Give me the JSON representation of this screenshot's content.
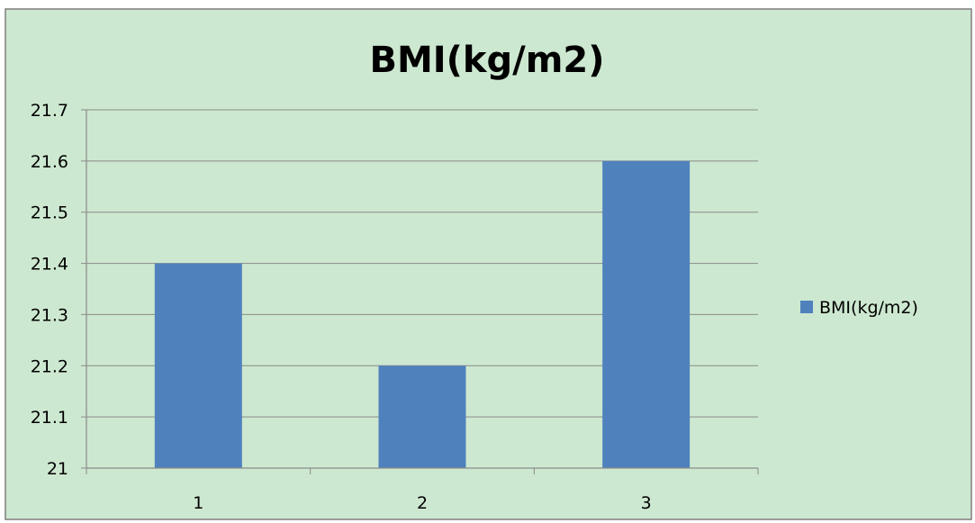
{
  "chart_data": {
    "type": "bar",
    "title": "BMI(kg/m2)",
    "xlabel": "",
    "ylabel": "",
    "categories": [
      "1",
      "2",
      "3"
    ],
    "series": [
      {
        "name": "BMI(kg/m2)",
        "values": [
          21.4,
          21.2,
          21.6
        ]
      }
    ],
    "ylim": [
      21,
      21.7
    ],
    "yticks": [
      "21",
      "21.1",
      "21.2",
      "21.3",
      "21.4",
      "21.5",
      "21.6",
      "21.7"
    ],
    "grid": true,
    "legend": "right"
  },
  "colors": {
    "plot_background": "#cde8d0",
    "bar": "#4f81bd",
    "gridline": "#8a8a8a",
    "frame": "#7f7f7f"
  }
}
